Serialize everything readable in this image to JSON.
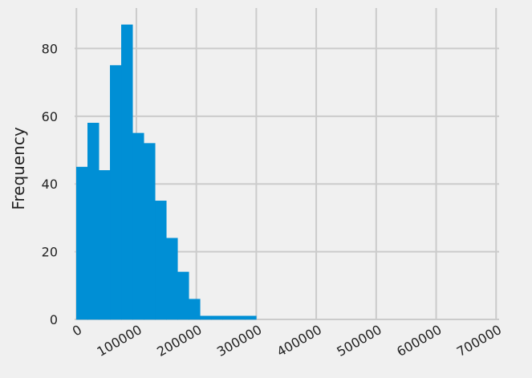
{
  "chart_data": {
    "type": "bar",
    "subtype": "histogram",
    "title": "",
    "xlabel": "",
    "ylabel": "Frequency",
    "bin_width": 18750,
    "bin_start": 0,
    "bins": [
      {
        "start": 0,
        "end": 18750,
        "count": 45
      },
      {
        "start": 18750,
        "end": 37500,
        "count": 58
      },
      {
        "start": 37500,
        "end": 56250,
        "count": 44
      },
      {
        "start": 56250,
        "end": 75000,
        "count": 75
      },
      {
        "start": 75000,
        "end": 93750,
        "count": 87
      },
      {
        "start": 93750,
        "end": 112500,
        "count": 55
      },
      {
        "start": 112500,
        "end": 131250,
        "count": 52
      },
      {
        "start": 131250,
        "end": 150000,
        "count": 35
      },
      {
        "start": 150000,
        "end": 168750,
        "count": 24
      },
      {
        "start": 168750,
        "end": 187500,
        "count": 14
      },
      {
        "start": 187500,
        "end": 206250,
        "count": 6
      },
      {
        "start": 206250,
        "end": 225000,
        "count": 1
      },
      {
        "start": 225000,
        "end": 243750,
        "count": 1
      },
      {
        "start": 243750,
        "end": 262500,
        "count": 1
      },
      {
        "start": 262500,
        "end": 281250,
        "count": 1
      },
      {
        "start": 281250,
        "end": 300000,
        "count": 1
      }
    ],
    "xlim": [
      -3000,
      705000
    ],
    "ylim": [
      0,
      91
    ],
    "x_ticks": [
      0,
      100000,
      200000,
      300000,
      400000,
      500000,
      600000,
      700000
    ],
    "x_tick_labels": [
      "0",
      "100000",
      "200000",
      "300000",
      "400000",
      "500000",
      "600000",
      "700000"
    ],
    "y_ticks": [
      0,
      20,
      40,
      60,
      80
    ],
    "y_tick_labels": [
      "0",
      "20",
      "40",
      "60",
      "80"
    ],
    "grid": true,
    "bar_color": "#008fd5",
    "grid_color": "#cbcbcb",
    "background": "#f0f0f0"
  }
}
